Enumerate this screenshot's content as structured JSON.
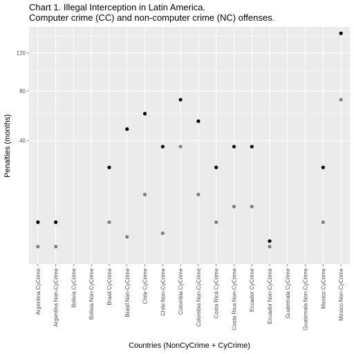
{
  "chart_data": {
    "type": "scatter",
    "title": "Chart 1. Illegal Interception in Latin America.",
    "subtitle": "Computer crime (CC) and non-computer crime (NC) offenses.",
    "xlabel": "Countries (NonCyCrime + CyCrime)",
    "ylabel": "Penalties (months)",
    "y_ticks": [
      40,
      80,
      120
    ],
    "y_tick_labels": [
      "40",
      "80",
      "120"
    ],
    "ylim": [
      -2,
      145
    ],
    "grid": true,
    "categories": [
      "Argentina CyCrime",
      "Argentina Non-CyCrime",
      "Bolivia CyCrime",
      "Bolivia Non-CyCrime",
      "Brasil CyCrime",
      "Brasil Non-CyCrime",
      "Chile CyCrime",
      "Chile Non-CyCrime",
      "Colombia CyCrime",
      "Colombia Non-CyCrime",
      "Costa Rica CyCrime",
      "Costa Rica Non-CyCrime",
      "Ecuador CyCrime",
      "Ecuador Non-CyCrime",
      "Guatemala CyCrime",
      "Guatemala Non-CyCrime",
      "Mexico CyCrime",
      "Mexico Non-CyCrime"
    ],
    "series": [
      {
        "color": "#000000",
        "values": [
          4,
          4,
          null,
          null,
          24,
          48,
          60,
          36,
          72,
          54,
          24,
          36,
          36,
          1,
          null,
          null,
          24,
          144
        ]
      },
      {
        "color": "#808080",
        "values": [
          0.5,
          0.5,
          null,
          null,
          4,
          1.5,
          12,
          2,
          36,
          12,
          4,
          8,
          8,
          0.5,
          null,
          null,
          4,
          72
        ]
      }
    ]
  }
}
